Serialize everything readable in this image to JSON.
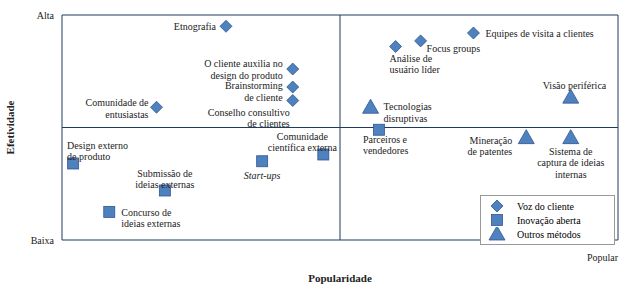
{
  "chart_data": {
    "type": "scatter",
    "x_label": "Popularidade",
    "y_label": "Efetividade",
    "xlim": [
      0,
      10
    ],
    "ylim": [
      0,
      10
    ],
    "xticks": [
      {
        "value": 10,
        "label": "Popular"
      }
    ],
    "yticks": [
      {
        "value": 0,
        "label": "Baixa"
      },
      {
        "value": 10,
        "label": "Alta"
      }
    ],
    "dividers": {
      "x": 5,
      "y": 5
    },
    "legend": "bottom right",
    "series": [
      {
        "name": "Voz do cliente",
        "color": "#4f81bd",
        "marker": "diamond",
        "points": [
          {
            "x": 2.95,
            "y": 9.5,
            "label": "Etnografia"
          },
          {
            "x": 4.15,
            "y": 7.6,
            "label": "O cliente auxilia no\ndesign do produto"
          },
          {
            "x": 4.15,
            "y": 6.8,
            "label": "Brainstorming\nde cliente"
          },
          {
            "x": 4.15,
            "y": 6.2,
            "label": "Conselho consultivo\nde clientes"
          },
          {
            "x": 1.7,
            "y": 5.9,
            "label": "Comunidade de\nentusiastas"
          },
          {
            "x": 7.4,
            "y": 9.2,
            "label": "Equipes de visita a clientes"
          },
          {
            "x": 6.45,
            "y": 8.85,
            "label": "Focus groups"
          },
          {
            "x": 6.0,
            "y": 8.6,
            "label": "Análise de\nusuário líder"
          }
        ]
      },
      {
        "name": "Inovação aberta",
        "color": "#4f81bd",
        "marker": "square",
        "points": [
          {
            "x": 0.2,
            "y": 3.4,
            "label": "Design externo\nde produto"
          },
          {
            "x": 1.85,
            "y": 2.2,
            "label": "Submissão de\nideias externas"
          },
          {
            "x": 0.85,
            "y": 1.25,
            "label": "Concurso de\nideias externas"
          },
          {
            "x": 3.6,
            "y": 3.5,
            "label": "Start-ups"
          },
          {
            "x": 4.7,
            "y": 3.8,
            "label": "Comunidade\ncientífica externa"
          },
          {
            "x": 5.7,
            "y": 4.9,
            "label": "Parceiros e\nvendedores"
          }
        ]
      },
      {
        "name": "Outros métodos",
        "color": "#4f81bd",
        "marker": "triangle",
        "points": [
          {
            "x": 5.55,
            "y": 5.9,
            "label": "Tecnologias\ndisruptivas"
          },
          {
            "x": 9.15,
            "y": 6.35,
            "label": "Visão periférica"
          },
          {
            "x": 8.35,
            "y": 4.55,
            "label": "Mineração\nde patentes"
          },
          {
            "x": 9.15,
            "y": 4.55,
            "label": "Sistema de\ncaptura de ideias\ninternas"
          }
        ]
      }
    ]
  }
}
